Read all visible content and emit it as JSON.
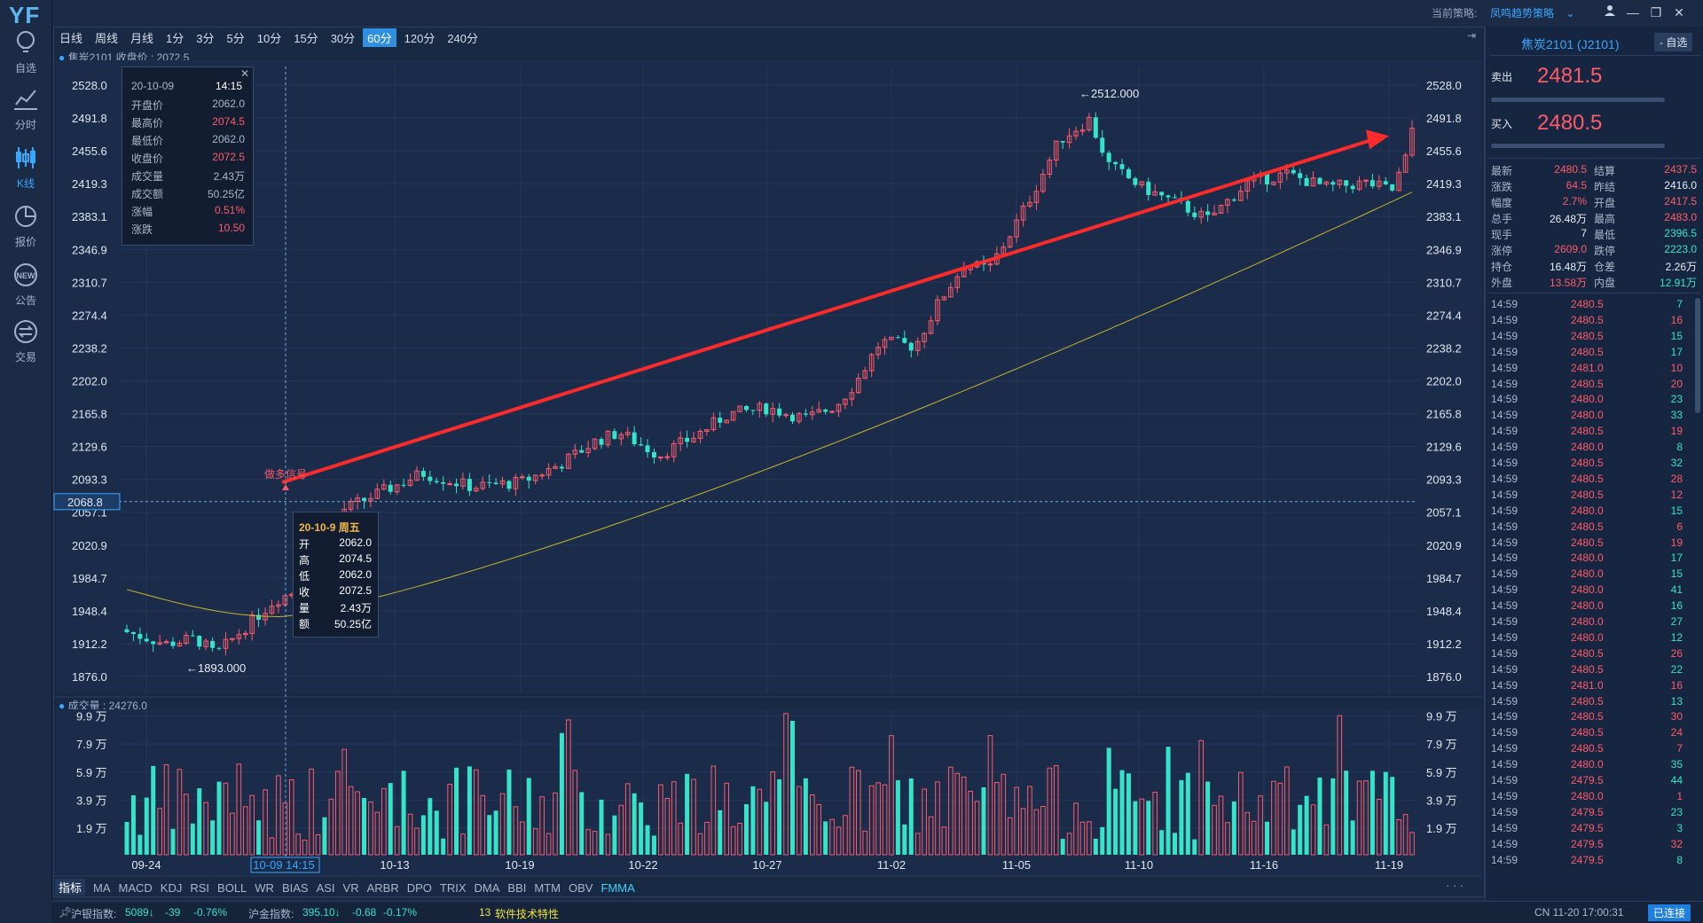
{
  "app": {
    "logo": "YF",
    "strategy_label": "当前策略:",
    "strategy_value": "凤鸣趋势策略",
    "nav": [
      {
        "label": "自选",
        "icon": "lightbulb-icon"
      },
      {
        "label": "分时",
        "icon": "line-chart-icon"
      },
      {
        "label": "K线",
        "icon": "candlestick-icon"
      },
      {
        "label": "报价",
        "icon": "pie-chart-icon"
      },
      {
        "label": "公告",
        "icon": "new-badge-icon"
      },
      {
        "label": "交易",
        "icon": "exchange-icon"
      }
    ]
  },
  "periods": [
    "日线",
    "周线",
    "月线",
    "1分",
    "3分",
    "5分",
    "10分",
    "15分",
    "30分",
    "60分",
    "120分",
    "240分"
  ],
  "active_period": "60分",
  "main_header": "焦炭2101 收盘价 : 2072.5",
  "volume_header": "成交量 : 24276.0",
  "price_axis": [
    "2528.0",
    "2491.8",
    "2455.6",
    "2419.3",
    "2383.1",
    "2346.9",
    "2310.7",
    "2274.4",
    "2238.2",
    "2202.0",
    "2165.8",
    "2129.6",
    "2093.3",
    "2057.1",
    "2020.9",
    "1984.7",
    "1948.4",
    "1912.2",
    "1876.0"
  ],
  "volume_axis": [
    "9.9 万",
    "7.9 万",
    "5.9 万",
    "3.9 万",
    "1.9 万"
  ],
  "date_axis": [
    "09-24",
    "10-09 14:15",
    "10-13",
    "10-19",
    "10-22",
    "10-27",
    "11-02",
    "11-05",
    "11-10",
    "11-16",
    "11-19"
  ],
  "crosshair_price": "2068.8",
  "annotations": {
    "high": "←2512.000",
    "low": "←1893.000",
    "signal": "做多信号"
  },
  "info_box": {
    "date": "20-10-09",
    "time": "14:15",
    "rows": [
      {
        "k": "开盘价",
        "v": "2062.0",
        "c": "w"
      },
      {
        "k": "最高价",
        "v": "2074.5",
        "c": "r"
      },
      {
        "k": "最低价",
        "v": "2062.0",
        "c": "w"
      },
      {
        "k": "收盘价",
        "v": "2072.5",
        "c": "r"
      },
      {
        "k": "成交量",
        "v": "2.43万",
        "c": "w"
      },
      {
        "k": "成交额",
        "v": "50.25亿",
        "c": "w"
      },
      {
        "k": "涨幅",
        "v": "0.51%",
        "c": "r"
      },
      {
        "k": "涨跌",
        "v": "10.50",
        "c": "r"
      }
    ]
  },
  "candle_tip": {
    "title": "20-10-9 周五",
    "rows": [
      {
        "k": "开",
        "v": "2062.0"
      },
      {
        "k": "高",
        "v": "2074.5"
      },
      {
        "k": "低",
        "v": "2062.0"
      },
      {
        "k": "收",
        "v": "2072.5"
      },
      {
        "k": "量",
        "v": "2.43万"
      },
      {
        "k": "额",
        "v": "50.25亿"
      }
    ]
  },
  "indicators": [
    "指标",
    "MA",
    "MACD",
    "KDJ",
    "RSI",
    "BOLL",
    "WR",
    "BIAS",
    "ASI",
    "VR",
    "ARBR",
    "DPO",
    "TRIX",
    "DMA",
    "BBI",
    "MTM",
    "OBV",
    "FMMA"
  ],
  "active_indicator": "FMMA",
  "status": {
    "idx1_label": "沪银指数:",
    "idx1_val": "5089",
    "idx1_chg": "-39",
    "idx1_pct": "-0.76%",
    "idx2_label": "沪金指数:",
    "idx2_val": "395.10",
    "idx2_chg": "-0.68",
    "idx2_pct": "-0.17%",
    "ticker": "软件技术特性",
    "ticker_num": "13",
    "clock": "CN 11-20 17:00:31",
    "conn": "已连接"
  },
  "quote": {
    "title": "焦炭2101 (J2101)",
    "fav_btn": "- 自选",
    "sell_label": "卖出",
    "sell_price": "2481.5",
    "buy_label": "买入",
    "buy_price": "2480.5",
    "stats": [
      [
        "最新",
        "2480.5",
        "r",
        "结算",
        "2437.5",
        "r"
      ],
      [
        "涨跌",
        "64.5",
        "r",
        "昨结",
        "2416.0",
        "w"
      ],
      [
        "幅度",
        "2.7%",
        "r",
        "开盘",
        "2417.5",
        "r"
      ],
      [
        "总手",
        "26.48万",
        "w",
        "最高",
        "2483.0",
        "r"
      ],
      [
        "现手",
        "7",
        "w",
        "最低",
        "2396.5",
        "g"
      ],
      [
        "涨停",
        "2609.0",
        "r",
        "跌停",
        "2223.0",
        "g"
      ],
      [
        "持仓",
        "16.48万",
        "w",
        "仓差",
        "2.26万",
        "w"
      ],
      [
        "外盘",
        "13.58万",
        "r",
        "内盘",
        "12.91万",
        "g"
      ]
    ],
    "ticks": [
      [
        "14:59",
        "2480.5",
        "7",
        "g"
      ],
      [
        "14:59",
        "2480.5",
        "16",
        "r"
      ],
      [
        "14:59",
        "2480.5",
        "15",
        "g"
      ],
      [
        "14:59",
        "2480.5",
        "17",
        "g"
      ],
      [
        "14:59",
        "2481.0",
        "10",
        "r"
      ],
      [
        "14:59",
        "2480.5",
        "20",
        "r"
      ],
      [
        "14:59",
        "2480.0",
        "23",
        "g"
      ],
      [
        "14:59",
        "2480.0",
        "33",
        "g"
      ],
      [
        "14:59",
        "2480.5",
        "19",
        "r"
      ],
      [
        "14:59",
        "2480.0",
        "8",
        "g"
      ],
      [
        "14:59",
        "2480.5",
        "32",
        "g"
      ],
      [
        "14:59",
        "2480.5",
        "28",
        "r"
      ],
      [
        "14:59",
        "2480.5",
        "12",
        "r"
      ],
      [
        "14:59",
        "2480.0",
        "15",
        "g"
      ],
      [
        "14:59",
        "2480.5",
        "6",
        "r"
      ],
      [
        "14:59",
        "2480.5",
        "19",
        "r"
      ],
      [
        "14:59",
        "2480.0",
        "17",
        "g"
      ],
      [
        "14:59",
        "2480.0",
        "15",
        "g"
      ],
      [
        "14:59",
        "2480.0",
        "41",
        "g"
      ],
      [
        "14:59",
        "2480.0",
        "16",
        "g"
      ],
      [
        "14:59",
        "2480.0",
        "27",
        "g"
      ],
      [
        "14:59",
        "2480.0",
        "12",
        "g"
      ],
      [
        "14:59",
        "2480.5",
        "26",
        "r"
      ],
      [
        "14:59",
        "2480.5",
        "22",
        "g"
      ],
      [
        "14:59",
        "2481.0",
        "16",
        "r"
      ],
      [
        "14:59",
        "2480.5",
        "13",
        "g"
      ],
      [
        "14:59",
        "2480.5",
        "30",
        "r"
      ],
      [
        "14:59",
        "2480.5",
        "24",
        "r"
      ],
      [
        "14:59",
        "2480.5",
        "7",
        "r"
      ],
      [
        "14:59",
        "2480.0",
        "35",
        "g"
      ],
      [
        "14:59",
        "2479.5",
        "44",
        "g"
      ],
      [
        "14:59",
        "2480.0",
        "1",
        "r"
      ],
      [
        "14:59",
        "2479.5",
        "23",
        "g"
      ],
      [
        "14:59",
        "2479.5",
        "3",
        "g"
      ],
      [
        "14:59",
        "2479.5",
        "32",
        "r"
      ],
      [
        "14:59",
        "2479.5",
        "8",
        "g"
      ]
    ]
  },
  "chart_data": {
    "type": "candlestick",
    "title": "焦炭2101",
    "ylim": [
      1876.0,
      2528.0
    ],
    "low": 1893.0,
    "high": 2512.0,
    "last_close": 2480.5,
    "ma_start": 1972,
    "ma_end": 2410,
    "volume_max": 100000
  },
  "colors": {
    "up": "#ff5a6a",
    "down": "#35e3c8",
    "ma": "#c9b52a",
    "arrow": "#ff2b2b",
    "bg": "#182944",
    "grid": "#24375a"
  }
}
